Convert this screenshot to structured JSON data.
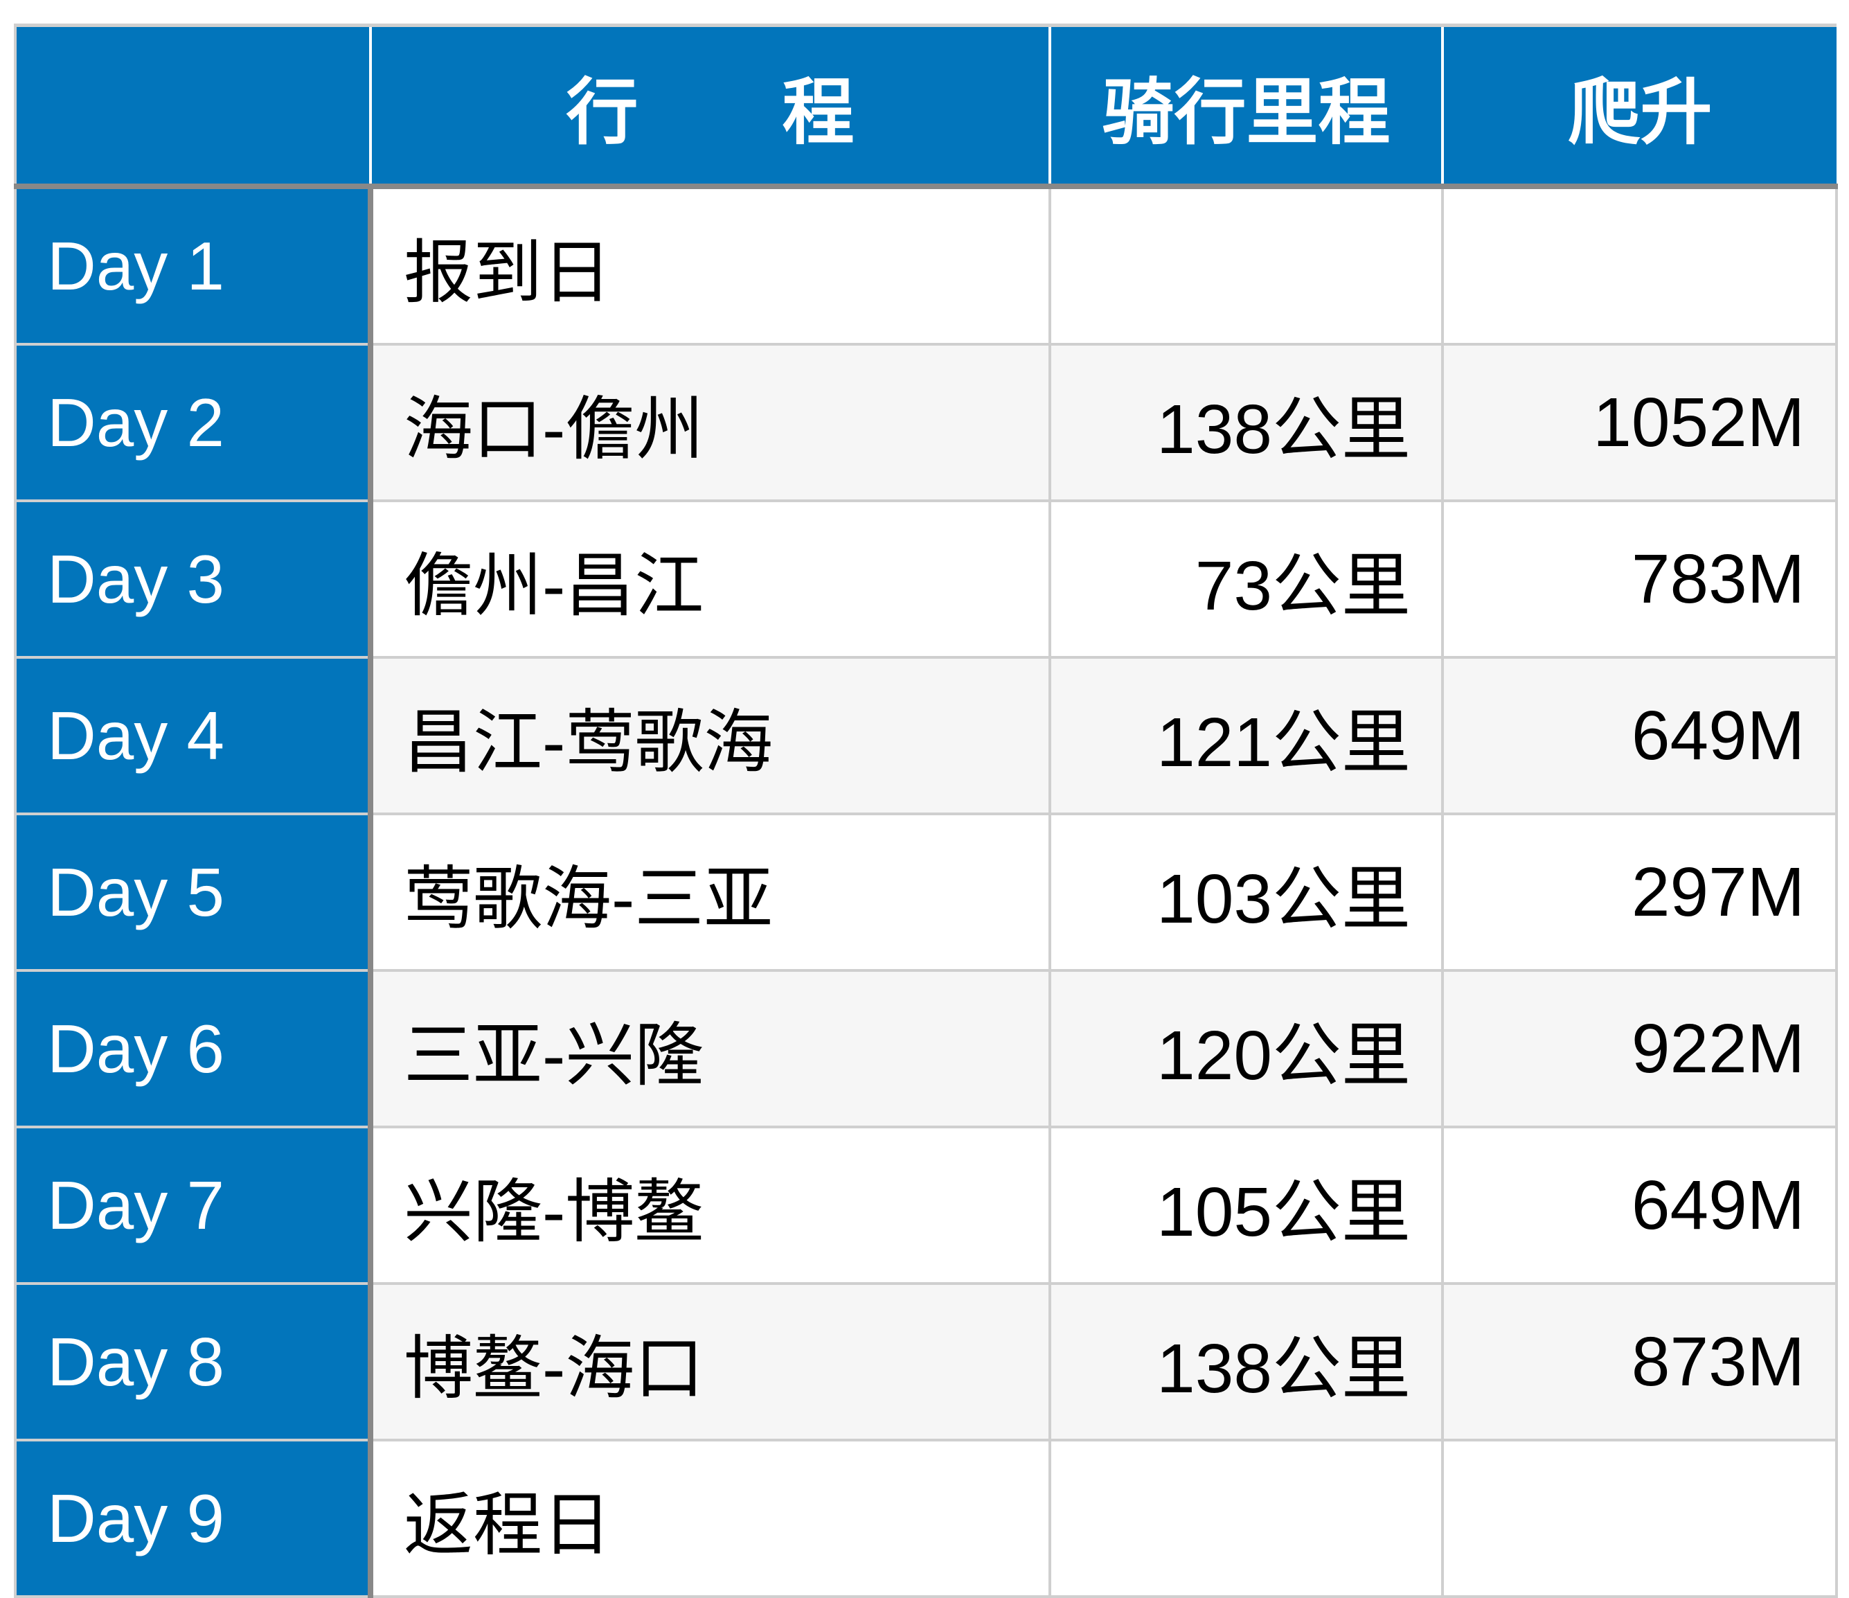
{
  "colors": {
    "header_bg": "#0275bb",
    "alt_row_bg": "#f6f6f6",
    "grid": "#cfcfcf"
  },
  "headers": [
    "",
    "行　　程",
    "骑行里程",
    "爬升"
  ],
  "rows": [
    {
      "day": "Day 1",
      "route": "报到日",
      "distance": "",
      "climb": ""
    },
    {
      "day": "Day 2",
      "route": "海口-儋州",
      "distance": "138公里",
      "climb": "1052M"
    },
    {
      "day": "Day 3",
      "route": "儋州-昌江",
      "distance": "73公里",
      "climb": "783M"
    },
    {
      "day": "Day 4",
      "route": "昌江-莺歌海",
      "distance": "121公里",
      "climb": "649M"
    },
    {
      "day": "Day 5",
      "route": "莺歌海-三亚",
      "distance": "103公里",
      "climb": "297M"
    },
    {
      "day": "Day 6",
      "route": "三亚-兴隆",
      "distance": "120公里",
      "climb": "922M"
    },
    {
      "day": "Day 7",
      "route": "兴隆-博鳌",
      "distance": "105公里",
      "climb": "649M"
    },
    {
      "day": "Day 8",
      "route": "博鳌-海口",
      "distance": "138公里",
      "climb": "873M"
    },
    {
      "day": "Day 9",
      "route": "返程日",
      "distance": "",
      "climb": ""
    }
  ]
}
